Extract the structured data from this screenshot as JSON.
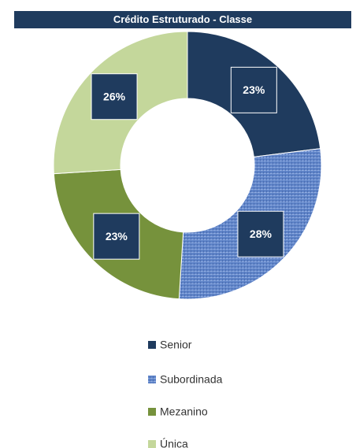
{
  "chart_data": {
    "type": "donut",
    "title": "Crédito Estruturado - Classe",
    "categories": [
      "Senior",
      "Subordinada",
      "Mezanino",
      "Única"
    ],
    "values": [
      23,
      28,
      23,
      26
    ],
    "value_labels": [
      "23%",
      "28%",
      "23%",
      "26%"
    ],
    "colors": [
      "#1f3b5e",
      "#5f84c8",
      "#76923c",
      "#c4d79b"
    ],
    "legend": "bottom"
  }
}
